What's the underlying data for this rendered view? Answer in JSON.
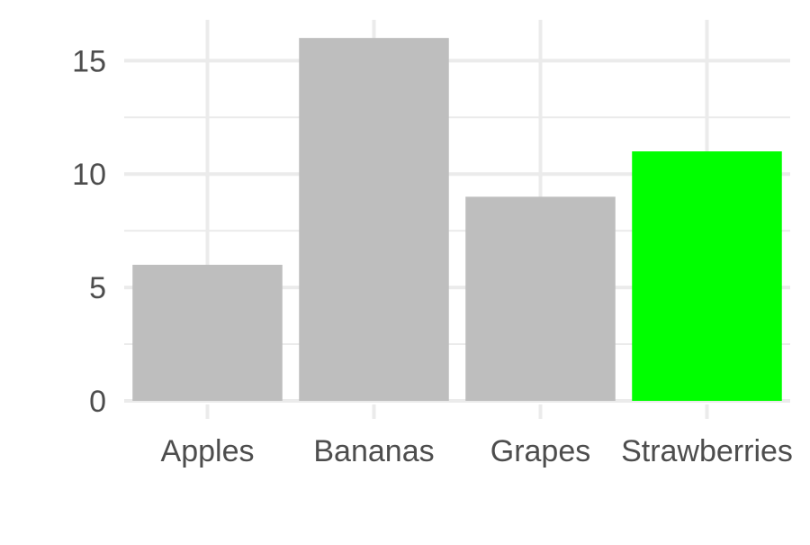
{
  "chart_data": {
    "type": "bar",
    "title": "",
    "xlabel": "",
    "ylabel": "",
    "categories": [
      "Apples",
      "Bananas",
      "Grapes",
      "Strawberries"
    ],
    "values": [
      6,
      16,
      9,
      11
    ],
    "ylim": [
      0,
      16.8
    ],
    "yticks": [
      0,
      5,
      10,
      15
    ],
    "ytick_labels": [
      "0",
      "5",
      "10",
      "15"
    ],
    "grid": true,
    "legend": "none",
    "colors": {
      "bar_default": "#bebebe",
      "bar_highlight": "#00ff00",
      "grid": "#ebebeb",
      "tick_text": "#4d4d4d"
    },
    "highlight_category": "Strawberries"
  }
}
